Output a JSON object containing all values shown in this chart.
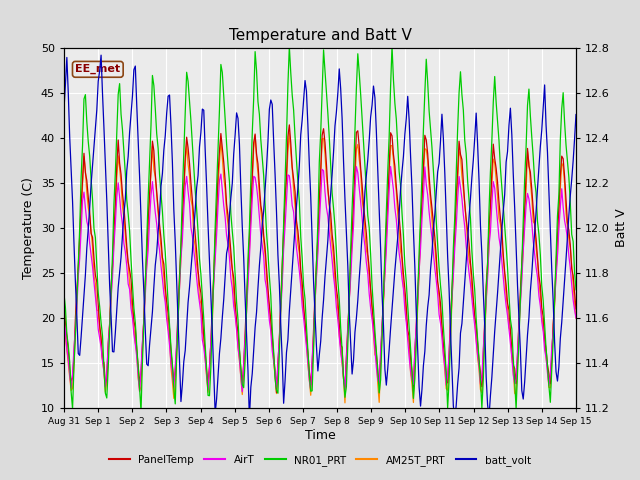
{
  "title": "Temperature and Batt V",
  "xlabel": "Time",
  "ylabel_left": "Temperature (C)",
  "ylabel_right": "Batt V",
  "xlim_days": [
    0,
    15
  ],
  "ylim_left": [
    10,
    50
  ],
  "ylim_right": [
    11.2,
    12.8
  ],
  "x_ticks_labels": [
    "Aug 31",
    "Sep 1",
    "Sep 2",
    "Sep 3",
    "Sep 4",
    "Sep 5",
    "Sep 6",
    "Sep 7",
    "Sep 8",
    "Sep 9",
    "Sep 10",
    "Sep 11",
    "Sep 12",
    "Sep 13",
    "Sep 14",
    "Sep 15"
  ],
  "bg_color": "#dcdcdc",
  "plot_bg_color": "#ebebeb",
  "station_label": "EE_met",
  "colors": {
    "PanelTemp": "#cc0000",
    "AirT": "#ee00ee",
    "NR01_PRT": "#00cc00",
    "AM25T_PRT": "#ff8800",
    "batt_volt": "#0000bb"
  },
  "legend_labels": [
    "PanelTemp",
    "AirT",
    "NR01_PRT",
    "AM25T_PRT",
    "batt_volt"
  ]
}
